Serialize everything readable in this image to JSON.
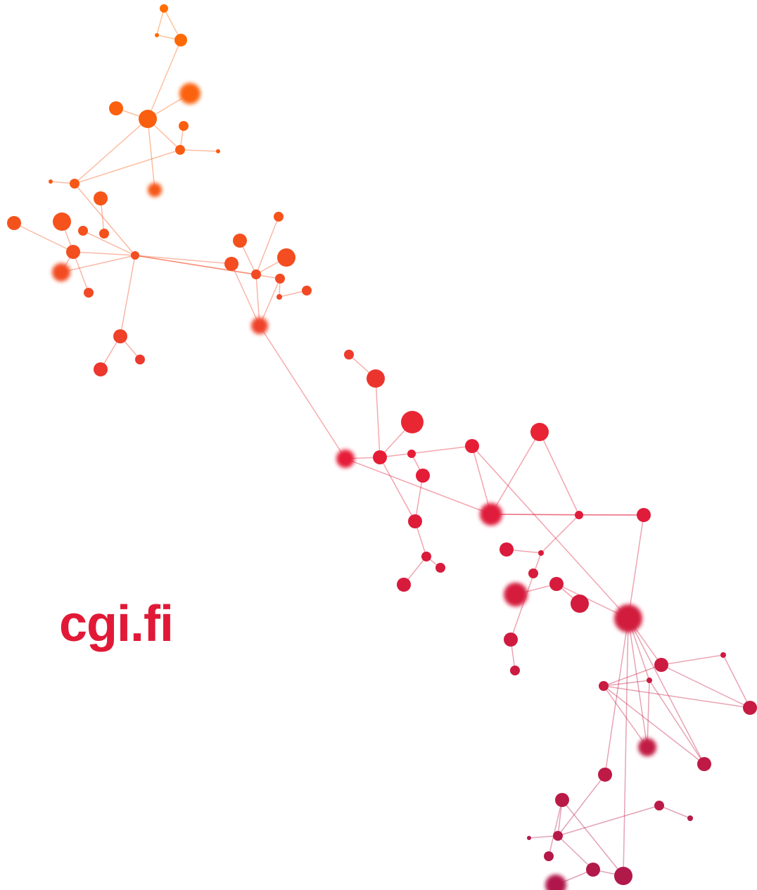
{
  "footer": {
    "website": "cgi.fi"
  }
}
